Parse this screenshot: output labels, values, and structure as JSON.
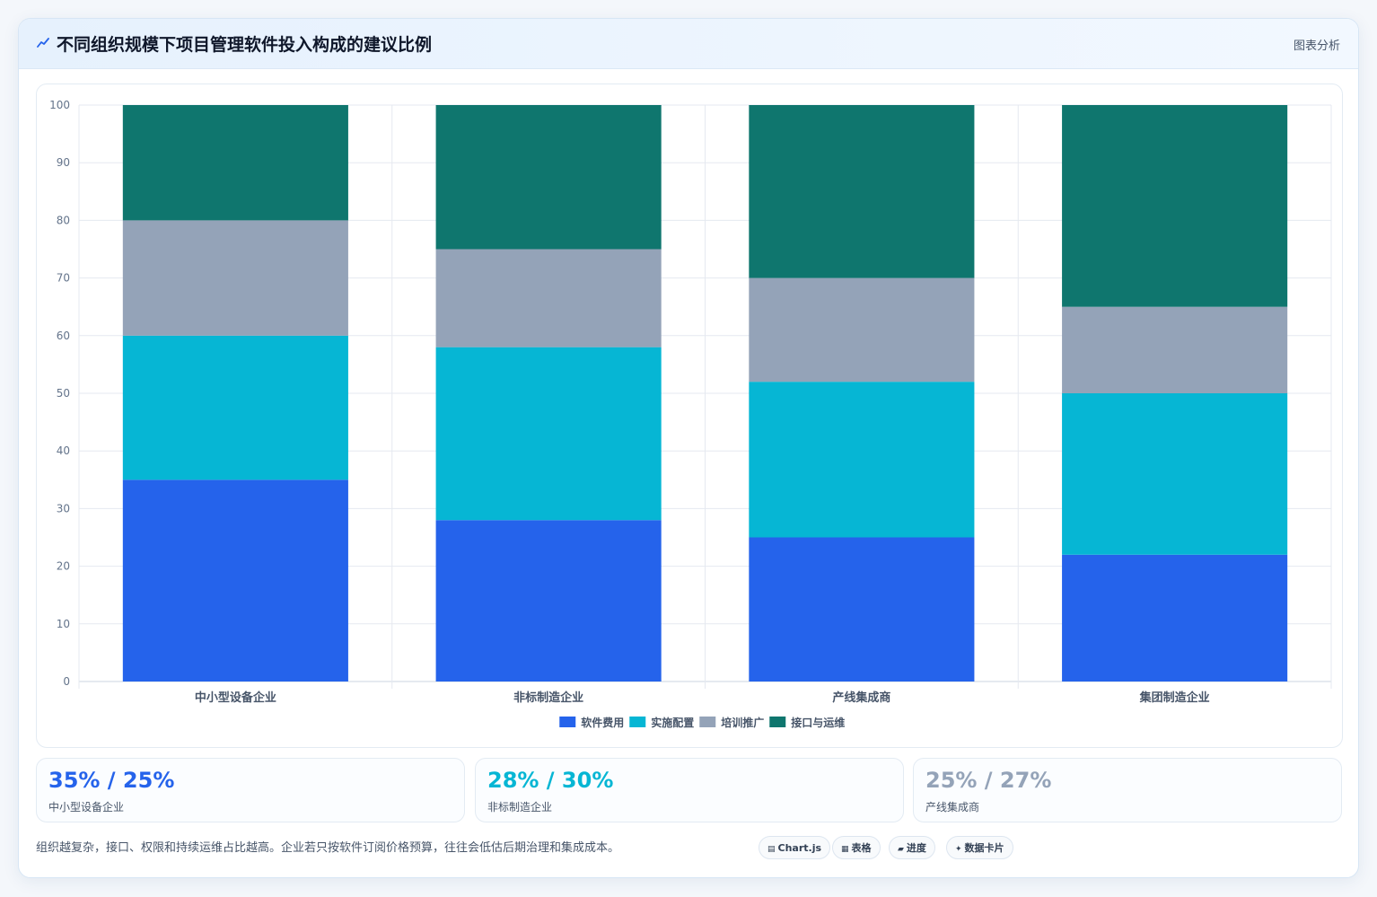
{
  "header": {
    "title": "不同组织规模下项目管理软件投入构成的建议比例",
    "tag": "图表分析"
  },
  "chart_data": {
    "type": "bar",
    "stacked": true,
    "categories": [
      "中小型设备企业",
      "非标制造企业",
      "产线集成商",
      "集团制造企业"
    ],
    "series": [
      {
        "name": "软件费用",
        "color": "#2563eb",
        "values": [
          35,
          28,
          25,
          22
        ]
      },
      {
        "name": "实施配置",
        "color": "#06b6d4",
        "values": [
          25,
          30,
          27,
          28
        ]
      },
      {
        "name": "培训推广",
        "color": "#94a3b8",
        "values": [
          20,
          17,
          18,
          15
        ]
      },
      {
        "name": "接口与运维",
        "color": "#0f766e",
        "values": [
          20,
          25,
          30,
          35
        ]
      }
    ],
    "ylim": [
      0,
      100
    ],
    "yticks": [
      0,
      10,
      20,
      30,
      40,
      50,
      60,
      70,
      80,
      90,
      100
    ],
    "grid": true,
    "legend": "bottom"
  },
  "stats": [
    {
      "value": "35% / 25%",
      "label": "中小型设备企业",
      "color": "#2563eb"
    },
    {
      "value": "28% / 30%",
      "label": "非标制造企业",
      "color": "#06b6d4"
    },
    {
      "value": "25% / 27%",
      "label": "产线集成商",
      "color": "#94a3b8"
    }
  ],
  "footer": {
    "note": "组织越复杂，接口、权限和持续运维占比越高。企业若只按软件订阅价格预算，往往会低估后期治理和集成成本。",
    "chips": [
      {
        "icon": "▤",
        "label": "Chart.js"
      },
      {
        "icon": "▦",
        "label": "表格"
      },
      {
        "icon": "▰",
        "label": "进度"
      },
      {
        "icon": "✦",
        "label": "数据卡片"
      }
    ]
  },
  "colors": {
    "accent": "#2563eb",
    "header_bg": "#e6f1fd"
  }
}
